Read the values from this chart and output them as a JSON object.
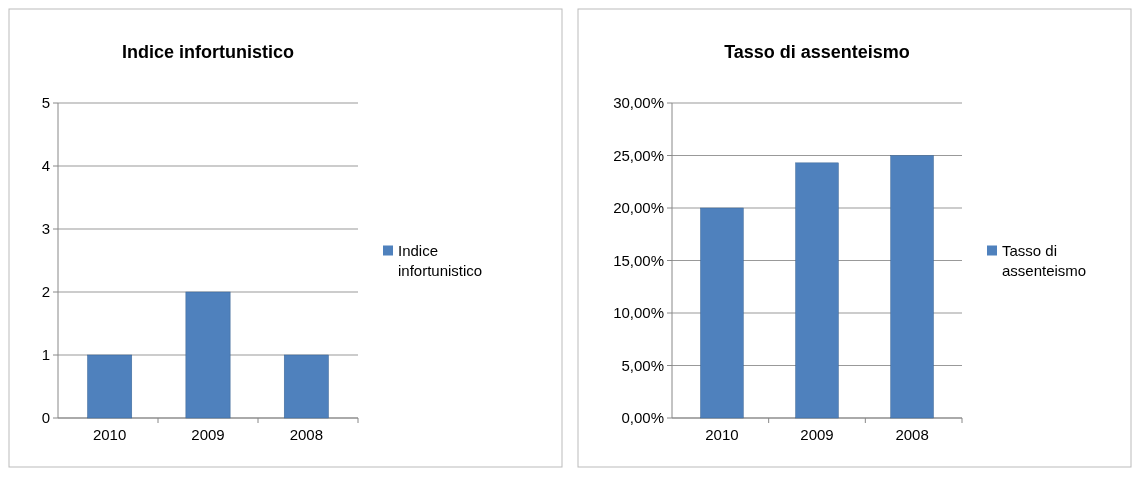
{
  "chart_data": [
    {
      "type": "bar",
      "title": "Indice infortunistico",
      "categories": [
        "2010",
        "2009",
        "2008"
      ],
      "series": [
        {
          "name": "Indice infortunistico",
          "color": "#4f81bd",
          "values": [
            1,
            2,
            1
          ]
        }
      ],
      "ylim": [
        0,
        5
      ],
      "yticks": [
        0,
        1,
        2,
        3,
        4,
        5
      ],
      "grid": "y",
      "legend": "right"
    },
    {
      "type": "bar",
      "title": "Tasso di assenteismo",
      "categories": [
        "2010",
        "2009",
        "2008"
      ],
      "series": [
        {
          "name": "Tasso di assenteismo",
          "color": "#4f81bd",
          "values": [
            20,
            24.3,
            25
          ]
        }
      ],
      "ylim": [
        0,
        30
      ],
      "yticks": [
        {
          "value": 0,
          "label": "0,00%"
        },
        {
          "value": 5,
          "label": "5,00%"
        },
        {
          "value": 10,
          "label": "10,00%"
        },
        {
          "value": 15,
          "label": "15,00%"
        },
        {
          "value": 20,
          "label": "20,00%"
        },
        {
          "value": 25,
          "label": "25,00%"
        },
        {
          "value": 30,
          "label": "30,00%"
        }
      ],
      "grid": "y",
      "legend": "right"
    }
  ]
}
